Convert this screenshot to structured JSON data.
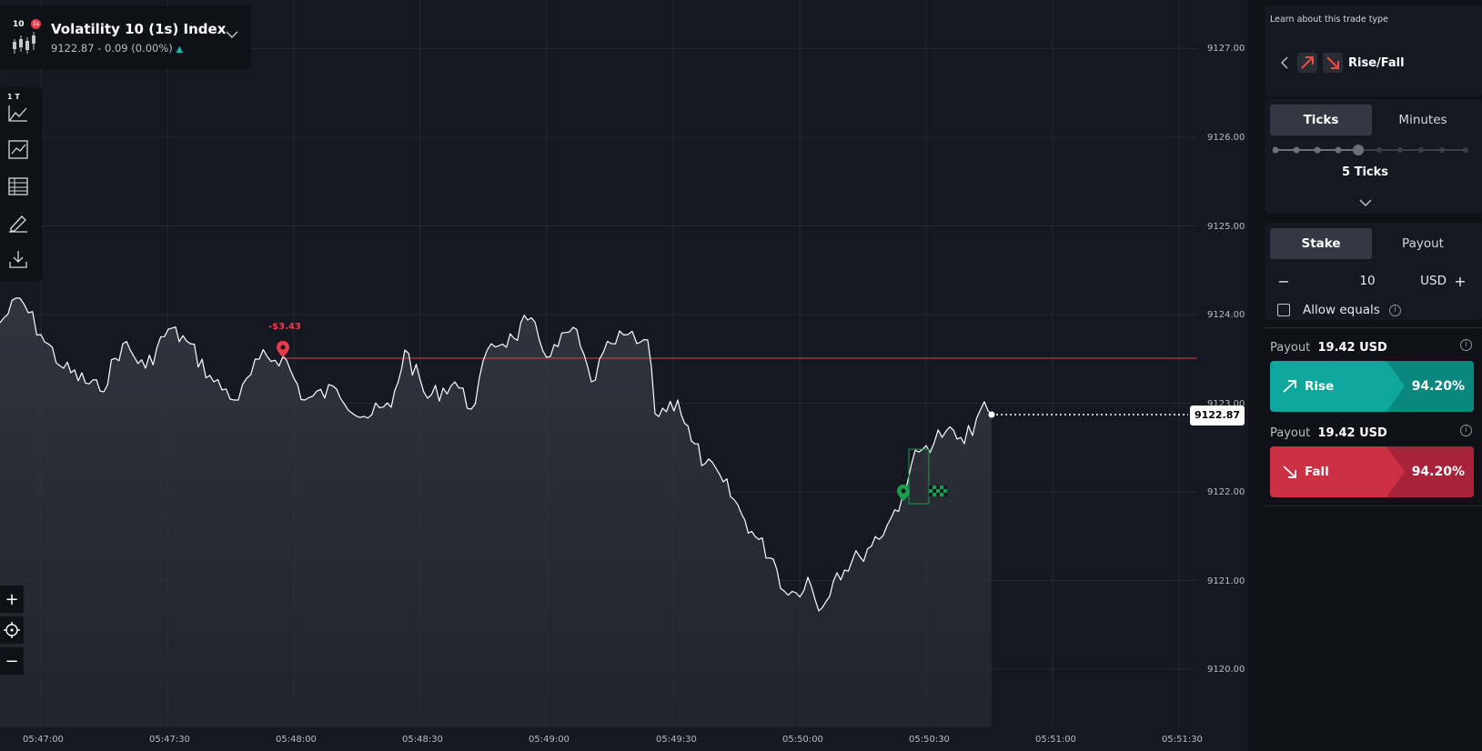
{
  "symbol": {
    "code": "10",
    "badge": "1s",
    "name": "Volatility 10 (1s) Index",
    "price_line": "9122.87 - 0.09 (0.00%)",
    "trend_arrow": "▲"
  },
  "toolbar": {
    "interval_label": "1 T",
    "items": [
      "chart-type-icon",
      "indicators-icon",
      "table-icon",
      "drawing-tools-icon",
      "download-icon"
    ]
  },
  "zoom": {
    "zoom_in": "+",
    "crosshair": "crosshair-icon",
    "zoom_out": "−"
  },
  "y_axis_labels": [
    "9127.00",
    "9126.00",
    "9125.00",
    "9124.00",
    "9123.00",
    "9122.00",
    "9121.00",
    "9120.00"
  ],
  "x_axis_labels": [
    "05:47:00",
    "05:47:30",
    "05:48:00",
    "05:48:30",
    "05:49:00",
    "05:49:30",
    "05:50:00",
    "05:50:30",
    "05:51:00",
    "05:51:30"
  ],
  "current_price_tag": "9122.87",
  "open_contract": {
    "profit_label": "-$3.43"
  },
  "panel": {
    "learn_link": "Learn about this trade type",
    "trade_type": "Rise/Fall",
    "duration_tabs": [
      "Ticks",
      "Minutes"
    ],
    "duration_value": "5 Ticks",
    "stake_tabs": [
      "Stake",
      "Payout"
    ],
    "stake": {
      "minus": "−",
      "value": "10",
      "currency": "USD",
      "plus": "+"
    },
    "allow_equals": "Allow equals",
    "rise": {
      "payout_label": "Payout",
      "payout_value": "19.42 USD",
      "label": "Rise",
      "percent": "94.20%"
    },
    "fall": {
      "payout_label": "Payout",
      "payout_value": "19.42 USD",
      "label": "Fall",
      "percent": "94.20%"
    }
  },
  "colors": {
    "rise": "#0fa79d",
    "rise_dark": "#0b8780",
    "fall": "#cd2f43",
    "fall_dark": "#a8233a",
    "loss": "#e63b4b",
    "profit": "#1a9e4c"
  }
}
